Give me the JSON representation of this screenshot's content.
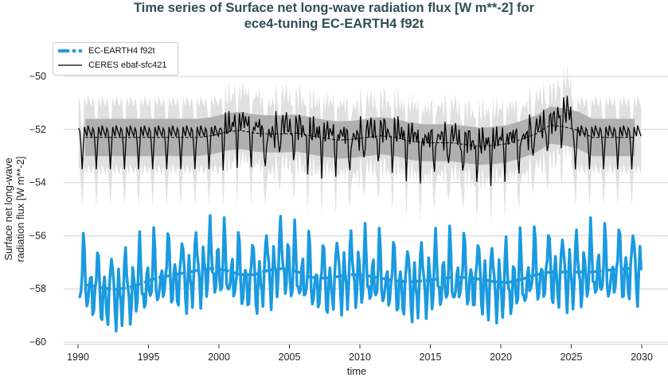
{
  "chart_data": {
    "type": "line",
    "title_line1": "Time series of Surface net long-wave radiation flux [W m**-2] for",
    "title_line2": "ece4-tuning EC-EARTH4 f92t",
    "xlabel": "time",
    "ylabel_line1": "Surface net long-wave",
    "ylabel_line2": "radiation flux [W m**-2]",
    "xlim": [
      1989.5,
      2032
    ],
    "ylim": [
      -60.1,
      -48.9
    ],
    "xticks": [
      "1990",
      "1995",
      "2000",
      "2005",
      "2010",
      "2015",
      "2020",
      "2025",
      "2030"
    ],
    "yticks": [
      "−60",
      "−58",
      "−56",
      "−54",
      "−52",
      "−50"
    ],
    "grid": "horizontal",
    "legend_placement": "top-left",
    "years": [
      1990,
      1991,
      1992,
      1993,
      1994,
      1995,
      1996,
      1997,
      1998,
      1999,
      2000,
      2001,
      2002,
      2003,
      2004,
      2005,
      2006,
      2007,
      2008,
      2009,
      2010,
      2011,
      2012,
      2013,
      2014,
      2015,
      2016,
      2017,
      2018,
      2019,
      2020,
      2021,
      2022,
      2023,
      2024,
      2025,
      2026,
      2027,
      2028,
      2029
    ],
    "series": [
      {
        "name": "EC-EARTH4 f92t",
        "color": "#1a9ae0",
        "style": "solid monthly + dashed running mean",
        "annual_mean": [
          -57.7,
          -58.0,
          -58.1,
          -58.0,
          -57.8,
          -57.6,
          -57.4,
          -57.5,
          -57.3,
          -57.1,
          -57.3,
          -57.5,
          -57.6,
          -57.3,
          -57.0,
          -57.4,
          -57.6,
          -57.7,
          -57.5,
          -57.4,
          -57.5,
          -57.6,
          -57.7,
          -57.8,
          -57.7,
          -57.6,
          -57.6,
          -57.5,
          -57.6,
          -57.8,
          -57.8,
          -57.7,
          -57.4,
          -57.3,
          -57.4,
          -57.4,
          -57.3,
          -57.4,
          -57.2,
          -57.2
        ],
        "seasonal_cycle": [
          -0.6,
          -1.0,
          -0.3,
          0.6,
          1.6,
          0.9,
          -0.1,
          -0.7,
          -1.1,
          -0.4,
          0.5,
          0.2
        ]
      },
      {
        "name": "CERES ebaf-sfc421",
        "color": "#000000",
        "style": "solid monthly + dashed running mean, grey uncertainty bands",
        "annual_mean": [
          -52.3,
          -52.3,
          -52.3,
          -52.3,
          -52.3,
          -52.3,
          -52.3,
          -52.3,
          -52.3,
          -52.3,
          -52.1,
          -51.9,
          -52.1,
          -52.4,
          -52.0,
          -52.1,
          -52.3,
          -52.3,
          -52.4,
          -52.5,
          -52.2,
          -52.2,
          -52.3,
          -52.4,
          -52.6,
          -52.5,
          -52.4,
          -52.6,
          -52.7,
          -52.6,
          -52.5,
          -52.5,
          -52.1,
          -51.9,
          -51.5,
          -52.3,
          -52.3,
          -52.3,
          -52.3,
          -52.3
        ],
        "seasonal_cycle": [
          0.35,
          0.25,
          -0.3,
          -1.2,
          -0.4,
          0.4,
          0.2,
          0.05,
          0.45,
          0.3,
          0.15,
          0.05
        ],
        "band_inner_halfwidth": 0.7,
        "band_outer_halfwidth": 1.6
      }
    ]
  }
}
